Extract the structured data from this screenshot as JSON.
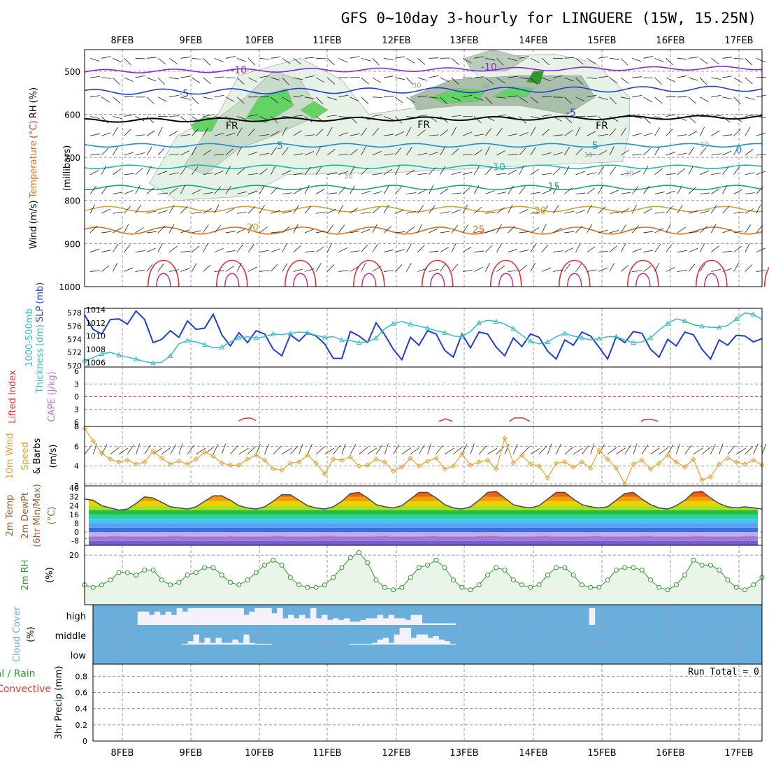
{
  "title": "GFS 0~10day 3-hourly for LINGUERE (15W, 15.25N)",
  "date_labels": [
    "8FEB",
    "9FEB",
    "10FEB",
    "11FEB",
    "12FEB",
    "13FEB",
    "14FEB",
    "15FEB",
    "16FEB",
    "17FEB"
  ],
  "colors": {
    "frame": "#000000",
    "grid": "#9a9a9a",
    "slp": "#1f3fcf",
    "thickness": "#33c0c0",
    "cape_li_zero": "#e03030",
    "wind_speed": "#e8a030",
    "rh": "#2a9a2a",
    "rh_fill": "#eaf5ea",
    "cloud": "#6aaedb",
    "cloud_gap": "#f4f2f8"
  },
  "chart_data": [
    {
      "type": "line",
      "panel": "upper-air cross-section",
      "ylabel_parts": [
        "Wind",
        "(m/s)",
        "Temperature",
        "(°C)",
        "RH",
        "(%)"
      ],
      "ylabel_units": "(millibars)",
      "y_ticks": [
        500,
        600,
        700,
        800,
        900,
        1000
      ],
      "ylim": [
        450,
        1000
      ],
      "invert_y": true,
      "isotherm_labels": [
        {
          "text": "-10",
          "day": 1.7,
          "p": 497,
          "color": "#8a2bd8"
        },
        {
          "text": "-10",
          "day": 5.35,
          "p": 490,
          "color": "#8a2bd8"
        },
        {
          "text": "-5",
          "day": 0.9,
          "p": 551,
          "color": "#1f3fcf"
        },
        {
          "text": "-5",
          "day": 6.55,
          "p": 596,
          "color": "#1f3fcf"
        },
        {
          "text": "FR",
          "day": 1.6,
          "p": 626,
          "color": "#000000"
        },
        {
          "text": "FR",
          "day": 4.4,
          "p": 624,
          "color": "#000000"
        },
        {
          "text": "FR",
          "day": 7.0,
          "p": 626,
          "color": "#000000"
        },
        {
          "text": "5",
          "day": 2.3,
          "p": 672,
          "color": "#1b8fd8"
        },
        {
          "text": "5",
          "day": 6.9,
          "p": 672,
          "color": "#1b8fd8"
        },
        {
          "text": "0",
          "day": 9.0,
          "p": 682,
          "color": "#1b8fd8"
        },
        {
          "text": "10",
          "day": 5.5,
          "p": 722,
          "color": "#20b8a8"
        },
        {
          "text": "15",
          "day": 6.3,
          "p": 767,
          "color": "#1aa878"
        },
        {
          "text": "20",
          "day": 1.9,
          "p": 862,
          "color": "#d8a030"
        },
        {
          "text": "20",
          "day": 6.1,
          "p": 823,
          "color": "#d8a030"
        },
        {
          "text": "25",
          "day": 5.2,
          "p": 867,
          "color": "#e07020"
        },
        {
          "text": "30",
          "day": 4.3,
          "p": 530,
          "color": "#9a9a9a"
        },
        {
          "text": "30",
          "day": 5.3,
          "p": 532,
          "color": "#9a9a9a"
        },
        {
          "text": "30",
          "day": 6.8,
          "p": 692,
          "color": "#9a9a9a"
        },
        {
          "text": "10",
          "day": 8.5,
          "p": 667,
          "color": "#9a9a9a"
        },
        {
          "text": "30",
          "day": 3.3,
          "p": 741,
          "color": "#9a9a9a"
        },
        {
          "text": "30",
          "day": 7.4,
          "p": 734,
          "color": "#9a9a9a"
        }
      ]
    },
    {
      "type": "line",
      "panel": "thickness and sea-level pressure",
      "ylabel_parts": [
        "1000-500mb",
        "Thickness",
        "(dm)",
        "SLP",
        "(mb)"
      ],
      "left_ticks": [
        570,
        572,
        574,
        576,
        578
      ],
      "right_ticks": [
        1006,
        1008,
        1010,
        1012,
        1014
      ],
      "series": [
        {
          "name": "SLP",
          "axis": "right",
          "ylim": [
            1005.5,
            1014
          ],
          "values": [
            1013.2,
            1011.0,
            1010.3,
            1012.5,
            1012.6,
            1011.8,
            1013.8,
            1012.5,
            1009.0,
            1009.5,
            1010.8,
            1009.8,
            1012.3,
            1011.0,
            1011.2,
            1013.3,
            1010.2,
            1008.5,
            1010.5,
            1009.0,
            1010.8,
            1010.3,
            1008.0,
            1007.0,
            1010.2,
            1009.2,
            1010.5,
            1010.0,
            1008.8,
            1006.6,
            1006.6,
            1010.7,
            1010.0,
            1009.0,
            1012.0,
            1010.2,
            1008.0,
            1006.4,
            1009.8,
            1008.6,
            1010.8,
            1010.3,
            1007.8,
            1006.8,
            1010.3,
            1008.2,
            1010.6,
            1010.3,
            1008.3,
            1007.0,
            1009.7,
            1008.4,
            1010.3,
            1009.8,
            1007.7,
            1006.5,
            1009.4,
            1008.6,
            1010.6,
            1010.0,
            1008.3,
            1006.5,
            1009.9,
            1009.0,
            1010.7,
            1010.4,
            1008.0,
            1006.8,
            1009.5,
            1008.5,
            1010.6,
            1010.2,
            1008.0,
            1006.5,
            1009.4,
            1008.6,
            1010.1,
            1010.0,
            1009.1,
            1009.6
          ]
        },
        {
          "name": "1000-500mb Thickness",
          "axis": "left",
          "ylim": [
            570,
            578.5
          ],
          "values": [
            570.8,
            571.2,
            571.8,
            572.0,
            571.6,
            571.3,
            571.0,
            570.6,
            570.4,
            570.5,
            571.5,
            573.3,
            573.8,
            573.6,
            573.2,
            572.7,
            572.8,
            573.6,
            574.2,
            574.4,
            574.2,
            574.4,
            574.8,
            574.7,
            574.9,
            575.1,
            575.0,
            574.6,
            574.3,
            574.4,
            573.9,
            573.8,
            573.5,
            573.6,
            574.2,
            575.6,
            576.4,
            576.7,
            576.3,
            576.0,
            575.7,
            575.3,
            575.0,
            574.5,
            574.4,
            575.2,
            576.5,
            576.9,
            576.7,
            576.3,
            575.6,
            574.6,
            573.7,
            573.3,
            573.6,
            574.4,
            574.9,
            574.5,
            574.2,
            573.9,
            574.1,
            574.4,
            574.4,
            573.9,
            573.5,
            573.6,
            574.2,
            575.4,
            576.4,
            577.1,
            576.8,
            576.2,
            576.0,
            575.8,
            575.8,
            576.1,
            577.1,
            578.0,
            577.8,
            577.0
          ]
        }
      ]
    },
    {
      "type": "line",
      "panel": "stability",
      "ylabel_parts": [
        "Lifted Index",
        "CAPE (J/kg)"
      ],
      "left_ticks": [
        -6,
        -3,
        0,
        3,
        6
      ],
      "left_tick_labels": [
        "6",
        "3",
        "0",
        "3",
        "6"
      ],
      "right_ticks": [
        8
      ],
      "series": [
        {
          "name": "Lifted Index",
          "segments": [
            {
              "x": [
                1.7,
                1.78,
                1.87,
                1.95
              ],
              "y": [
                5.7,
                5.1,
                5.0,
                5.6
              ]
            },
            {
              "x": [
                4.62,
                4.72,
                4.82
              ],
              "y": [
                5.8,
                5.2,
                5.8
              ]
            },
            {
              "x": [
                5.65,
                5.72,
                5.85,
                5.95
              ],
              "y": [
                5.8,
                5.0,
                5.0,
                5.8
              ]
            },
            {
              "x": [
                7.57,
                7.62,
                7.72,
                7.82
              ],
              "y": [
                5.8,
                5.4,
                5.3,
                5.8
              ]
            }
          ]
        }
      ]
    },
    {
      "type": "line",
      "panel": "10m wind",
      "ylabel_parts": [
        "10m Wind",
        "Speed",
        "& Barbs",
        "(m/s)"
      ],
      "y_ticks": [
        2,
        4,
        6,
        8
      ],
      "ylim": [
        2,
        8
      ],
      "series": [
        {
          "name": "10m Wind Speed",
          "values": [
            7.8,
            6.5,
            5.3,
            4.7,
            4.4,
            4.6,
            4.2,
            4.4,
            5.5,
            4.8,
            4.2,
            4.5,
            4.2,
            4.7,
            5.4,
            5.0,
            4.3,
            4.1,
            4.1,
            4.7,
            5.1,
            4.6,
            3.7,
            3.6,
            4.3,
            4.4,
            5.1,
            4.3,
            3.2,
            4.7,
            4.6,
            4.9,
            4.0,
            4.1,
            4.7,
            4.4,
            3.5,
            3.9,
            4.8,
            4.0,
            4.5,
            4.8,
            3.7,
            4.0,
            5.2,
            4.1,
            4.4,
            4.6,
            3.7,
            6.8,
            4.3,
            5.1,
            4.2,
            4.0,
            2.8,
            4.3,
            4.4,
            3.9,
            4.4,
            3.8,
            5.6,
            4.7,
            3.8,
            2.2,
            4.2,
            4.6,
            3.7,
            4.3,
            5.1,
            4.4,
            3.9,
            4.7,
            2.6,
            2.9,
            4.2,
            4.8,
            4.4,
            4.2,
            4.6,
            4.1
          ]
        }
      ]
    },
    {
      "type": "area",
      "panel": "2m temperature",
      "ylabel_parts": [
        "2m Temp",
        "2m DewPt",
        "(6hr Min/Max)",
        "(°C)"
      ],
      "y_ticks": [
        -8,
        0,
        8,
        16,
        24,
        32,
        40
      ],
      "y_extra_ticks": [
        4,
        12,
        20,
        28,
        36
      ],
      "ylim": [
        -12,
        42
      ],
      "series": [
        {
          "name": "2m Temp",
          "values": [
            30,
            29,
            24,
            22,
            20,
            21,
            26,
            32,
            31,
            27,
            23,
            22,
            21,
            23,
            28,
            33,
            33,
            29,
            24,
            22,
            21,
            23,
            28,
            34,
            34,
            29,
            24,
            22,
            21,
            23,
            28,
            35,
            36,
            31,
            25,
            23,
            22,
            24,
            30,
            36,
            36,
            31,
            25,
            22,
            21,
            23,
            29,
            36,
            37,
            31,
            25,
            23,
            22,
            24,
            30,
            36,
            36,
            30,
            25,
            23,
            22,
            23,
            29,
            35,
            36,
            30,
            25,
            22,
            21,
            24,
            29,
            36,
            37,
            31,
            26,
            23,
            22,
            23,
            22,
            21
          ]
        },
        {
          "name": "2m DewPt",
          "values": [
            -6,
            -5,
            -5,
            -4,
            -4,
            -5,
            -5,
            -6,
            -6,
            -5,
            -4,
            -4,
            -5,
            -6,
            -6,
            -5,
            -5,
            -4,
            -5,
            -6,
            -6,
            -5,
            -4,
            -4,
            -5,
            -6,
            -6,
            -5,
            -4,
            -4,
            -5,
            -6,
            -5,
            -5,
            -4,
            -4,
            -5,
            -6,
            -6,
            -5,
            -4,
            -4,
            -5,
            -5,
            -6,
            -5,
            -4,
            -4,
            -4,
            -5,
            -6,
            -6,
            -5,
            -4,
            -4,
            -5,
            -5,
            -6,
            -5,
            -4,
            -4,
            -5,
            -6,
            -6,
            -5,
            -4,
            -4,
            -5,
            -5,
            -6,
            -5,
            -4,
            -4,
            -5,
            -6,
            -6,
            -5,
            -4,
            -4,
            -5
          ]
        }
      ]
    },
    {
      "type": "line",
      "panel": "2m relative humidity",
      "ylabel_parts": [
        "2m RH",
        "(%)"
      ],
      "y_ticks": [
        20
      ],
      "ylim": [
        0,
        24
      ],
      "series": [
        {
          "name": "2m RH",
          "values": [
            8,
            7,
            8,
            10,
            13,
            13,
            12,
            14,
            14,
            10,
            8,
            9,
            12,
            13,
            15,
            15,
            12,
            9,
            8,
            10,
            13,
            16,
            18,
            16,
            11,
            8,
            7,
            7,
            8,
            11,
            15,
            19,
            21,
            17,
            10,
            7,
            6,
            7,
            11,
            15,
            16,
            18,
            15,
            10,
            7,
            6,
            8,
            12,
            15,
            14,
            10,
            8,
            7,
            8,
            12,
            15,
            15,
            12,
            8,
            7,
            7,
            10,
            14,
            15,
            15,
            14,
            10,
            7,
            6,
            8,
            12,
            18,
            16,
            16,
            14,
            10,
            7,
            6,
            8,
            11
          ]
        }
      ]
    },
    {
      "type": "area",
      "panel": "cloud cover",
      "ylabel_parts": [
        "Cloud Cover",
        "(%)"
      ],
      "levels": [
        "high",
        "middle",
        "low"
      ],
      "series": [
        {
          "name": "high",
          "values": [
            0,
            0,
            0,
            0,
            0,
            0,
            0,
            0,
            80,
            80,
            60,
            80,
            60,
            80,
            60,
            100,
            80,
            100,
            100,
            100,
            100,
            100,
            100,
            100,
            100,
            100,
            100,
            60,
            80,
            100,
            100,
            100,
            70,
            100,
            40,
            60,
            40,
            60,
            40,
            100,
            40,
            60,
            30,
            40,
            30,
            40,
            20,
            20,
            30,
            40,
            40,
            60,
            40,
            60,
            40,
            40,
            30,
            60,
            60,
            10,
            10,
            10,
            10,
            10,
            10,
            0,
            0,
            0,
            0,
            0,
            0,
            0,
            0,
            0,
            0,
            0,
            0,
            0,
            0,
            0,
            0,
            0,
            0,
            0,
            0,
            0,
            0,
            0,
            0,
            100,
            0,
            0,
            0,
            0,
            0,
            0,
            0,
            0,
            0,
            0,
            0,
            0,
            0,
            0,
            0,
            0,
            0,
            0,
            0,
            0,
            0,
            0,
            0,
            0,
            0,
            0,
            0,
            0,
            0,
            0
          ]
        },
        {
          "name": "middle",
          "values": [
            0,
            0,
            0,
            0,
            0,
            0,
            0,
            0,
            0,
            0,
            0,
            0,
            0,
            0,
            0,
            0,
            5,
            20,
            60,
            10,
            40,
            10,
            40,
            10,
            10,
            30,
            10,
            60,
            10,
            5,
            5,
            5,
            0,
            0,
            0,
            0,
            0,
            0,
            0,
            0,
            0,
            0,
            0,
            0,
            0,
            0,
            5,
            5,
            5,
            5,
            10,
            30,
            40,
            10,
            60,
            100,
            100,
            40,
            60,
            60,
            40,
            50,
            30,
            20,
            5,
            0,
            0,
            0,
            0,
            0,
            0,
            0,
            0,
            0,
            0,
            0,
            0,
            0,
            0,
            0,
            0,
            0,
            0,
            0,
            0,
            0,
            0,
            0,
            0,
            0,
            0,
            0,
            0,
            0,
            0,
            0,
            0,
            0,
            0,
            0,
            0,
            0,
            0,
            0,
            0,
            0,
            0,
            0,
            0,
            0,
            0,
            0,
            0,
            0,
            0,
            0,
            0,
            0,
            0,
            0
          ]
        }
      ]
    },
    {
      "type": "bar",
      "panel": "precipitation",
      "ylabel_parts": [
        "Total / Rain",
        "Convective",
        "3hr Precip (mm)"
      ],
      "y_ticks": [
        0,
        0.2,
        0.4,
        0.6,
        0.8
      ],
      "y_tick_labels": [
        "0",
        "0.2",
        "0.4",
        "0.6",
        "0.8"
      ],
      "ylim": [
        0,
        0.95
      ],
      "run_total_label": "Run Total = 0",
      "values": []
    }
  ]
}
